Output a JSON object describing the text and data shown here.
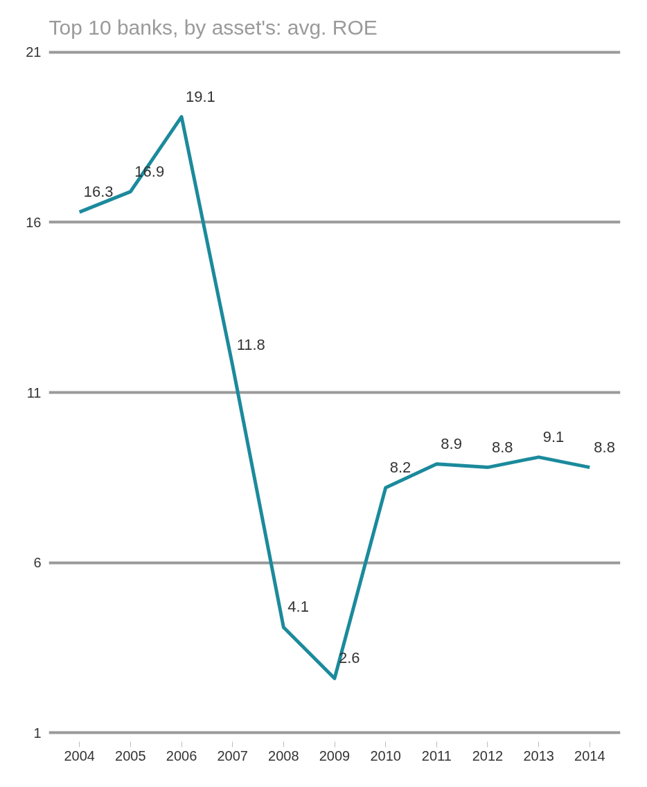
{
  "chart_data": {
    "type": "line",
    "title": "Top 10 banks, by asset's: avg. ROE",
    "categories": [
      "2004",
      "2005",
      "2006",
      "2007",
      "2008",
      "2009",
      "2010",
      "2011",
      "2012",
      "2013",
      "2014"
    ],
    "series": [
      {
        "color": "#1b8a9c",
        "values": [
          16.3,
          16.9,
          19.1,
          11.8,
          4.1,
          2.6,
          8.2,
          8.9,
          8.8,
          9.1,
          8.8
        ]
      }
    ],
    "ylim": [
      1,
      21
    ],
    "yticks": [
      1,
      6,
      11,
      16,
      21
    ],
    "grid": "y",
    "data_labels": true,
    "marker": "none",
    "line_style": "solid"
  }
}
